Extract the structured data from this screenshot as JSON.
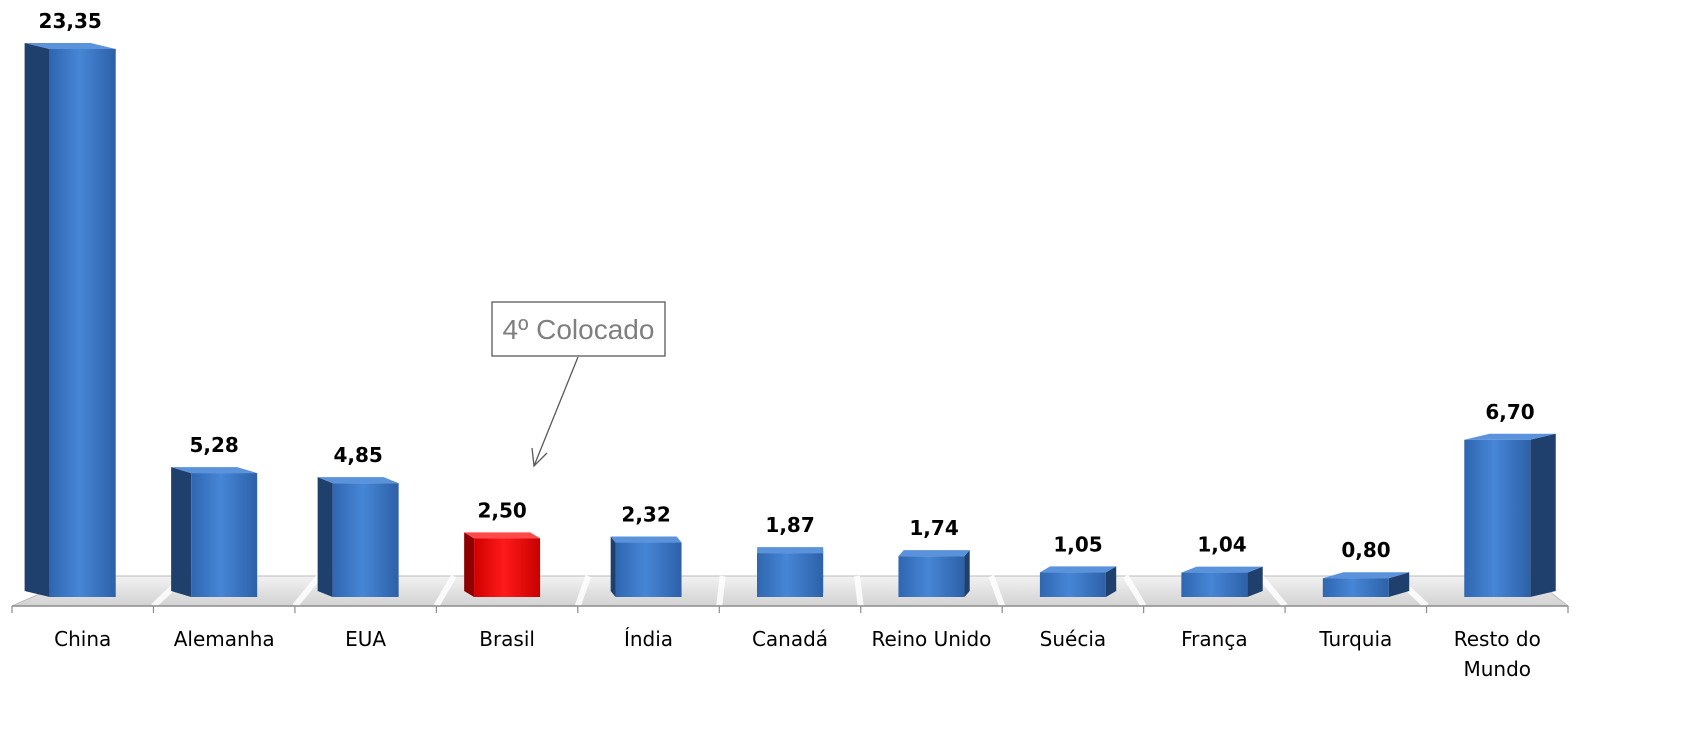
{
  "chart_data": {
    "type": "bar",
    "title": "",
    "xlabel": "",
    "ylabel": "",
    "categories": [
      "China",
      "Alemanha",
      "EUA",
      "Brasil",
      "Índia",
      "Canadá",
      "Reino Unido",
      "Suécia",
      "França",
      "Turquia",
      "Resto do Mundo"
    ],
    "values": [
      23.35,
      5.28,
      4.85,
      2.5,
      2.32,
      1.87,
      1.74,
      1.05,
      1.04,
      0.8,
      6.7
    ],
    "value_labels": [
      "23,35",
      "5,28",
      "4,85",
      "2,50",
      "2,32",
      "1,87",
      "1,74",
      "1,05",
      "1,04",
      "0,80",
      "6,70"
    ],
    "ylim": [
      0,
      23.35
    ],
    "grid": false,
    "legend": "none",
    "style": "3d-perspective-columns",
    "highlight_category": "Brasil",
    "colors": {
      "bar": "#3a78c8",
      "highlight": "#ee0000",
      "floor": "#e6e6e6"
    },
    "annotations": [
      {
        "text": "4º Colocado",
        "target": "Brasil"
      }
    ]
  }
}
